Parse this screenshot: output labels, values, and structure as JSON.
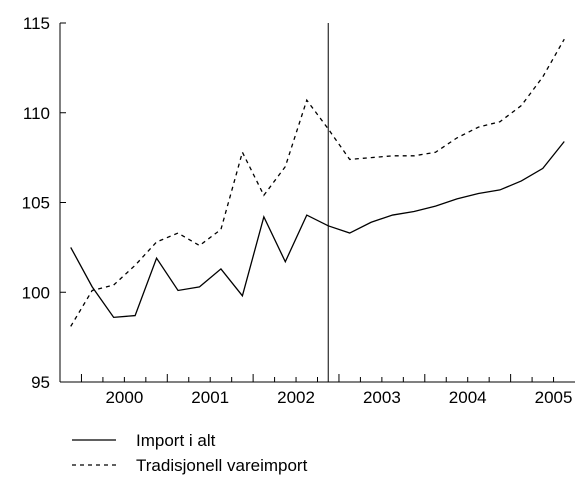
{
  "chart_data": {
    "type": "line",
    "title": "",
    "xlabel": "",
    "ylabel": "",
    "ylim": [
      95,
      115
    ],
    "yticks": [
      95,
      100,
      105,
      110,
      115
    ],
    "xlim": [
      1999.75,
      2005.75
    ],
    "x_tick_labels": [
      "2000",
      "2001",
      "2002",
      "2003",
      "2004",
      "2005"
    ],
    "grid": false,
    "legend_position": "bottom-left",
    "forecast_start": 2002.875,
    "x": [
      1999.875,
      2000.125,
      2000.375,
      2000.625,
      2000.875,
      2001.125,
      2001.375,
      2001.625,
      2001.875,
      2002.125,
      2002.375,
      2002.625,
      2002.875,
      2003.125,
      2003.375,
      2003.625,
      2003.875,
      2004.125,
      2004.375,
      2004.625,
      2004.875,
      2005.125,
      2005.375,
      2005.625
    ],
    "series": [
      {
        "name": "Import i alt",
        "style": "solid",
        "values": [
          102.5,
          100.3,
          98.6,
          98.7,
          101.9,
          100.1,
          100.3,
          101.3,
          99.8,
          104.2,
          101.7,
          104.3,
          103.7,
          103.3,
          103.9,
          104.3,
          104.5,
          104.8,
          105.2,
          105.5,
          105.7,
          106.2,
          106.9,
          108.4
        ]
      },
      {
        "name": "Tradisjonell vareimport",
        "style": "dashed",
        "values": [
          98.1,
          100.1,
          100.4,
          101.5,
          102.8,
          103.3,
          102.6,
          103.5,
          107.8,
          105.4,
          107.0,
          110.7,
          109.1,
          107.4,
          107.5,
          107.6,
          107.6,
          107.8,
          108.6,
          109.2,
          109.5,
          110.4,
          112.0,
          114.1
        ]
      }
    ]
  },
  "legend": {
    "items": [
      {
        "label": "Import i alt",
        "style": "solid"
      },
      {
        "label": "Tradisjonell vareimport",
        "style": "dashed"
      }
    ]
  }
}
